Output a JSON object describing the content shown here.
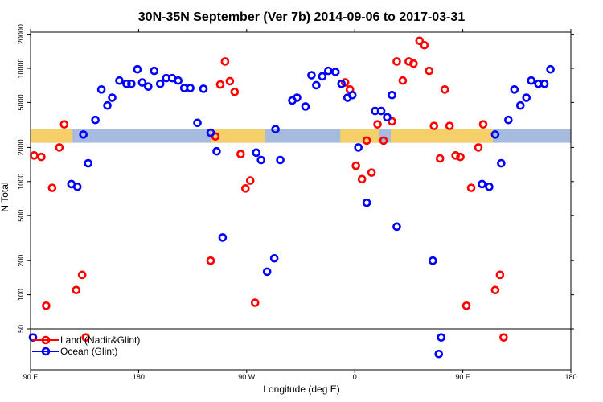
{
  "chart_data": {
    "type": "scatter",
    "title": "30N-35N September (Ver 7b)   2014-09-06 to 2017-03-31",
    "xlabel": "Longitude (deg E)",
    "ylabel": "N Total",
    "y_scale": "log",
    "x_ticks": [
      {
        "value": 0,
        "label": "90 E"
      },
      {
        "value": 90,
        "label": "180"
      },
      {
        "value": 180,
        "label": "90 W"
      },
      {
        "value": 270,
        "label": "0"
      },
      {
        "value": 360,
        "label": "90 E"
      },
      {
        "value": 450,
        "label": "180"
      }
    ],
    "y_ticks": [
      {
        "value": 50,
        "label": "50"
      },
      {
        "value": 100,
        "label": "100"
      },
      {
        "value": 200,
        "label": "200"
      },
      {
        "value": 500,
        "label": "500"
      },
      {
        "value": 1000,
        "label": "1000"
      },
      {
        "value": 2000,
        "label": "2000"
      },
      {
        "value": 5000,
        "label": "5000"
      },
      {
        "value": 10000,
        "label": "10000"
      },
      {
        "value": 20000,
        "label": "20000"
      }
    ],
    "legend": {
      "position": "bottom-left",
      "entries": [
        {
          "label": "Land (Nadir&Glint)",
          "color": "#ff0000"
        },
        {
          "label": "Ocean (Glint)",
          "color": "#0000ff"
        }
      ]
    },
    "surface_band": {
      "y_range": [
        2200,
        2900
      ],
      "land_color": "#f5d06a",
      "ocean_color": "#a6bbdd",
      "land_segments": [
        [
          -5,
          35
        ],
        [
          150,
          195
        ],
        [
          258,
          290
        ],
        [
          300,
          385
        ]
      ]
    },
    "series": [
      {
        "name": "Land (Nadir&Glint)",
        "color": "#ff0000",
        "points": [
          [
            3,
            1700
          ],
          [
            9,
            1650
          ],
          [
            13,
            80
          ],
          [
            18,
            880
          ],
          [
            24,
            2000
          ],
          [
            28,
            3200
          ],
          [
            38,
            110
          ],
          [
            43,
            150
          ],
          [
            46,
            42
          ],
          [
            150,
            200
          ],
          [
            154,
            2500
          ],
          [
            158,
            7200
          ],
          [
            162,
            11500
          ],
          [
            166,
            7700
          ],
          [
            170,
            6200
          ],
          [
            175,
            1750
          ],
          [
            179,
            870
          ],
          [
            183,
            1020
          ],
          [
            187,
            85
          ],
          [
            262,
            7500
          ],
          [
            266,
            6500
          ],
          [
            271,
            1380
          ],
          [
            276,
            1050
          ],
          [
            280,
            2300
          ],
          [
            284,
            1200
          ],
          [
            289,
            3200
          ],
          [
            294,
            2300
          ],
          [
            301,
            3400
          ],
          [
            305,
            11500
          ],
          [
            310,
            7800
          ],
          [
            315,
            11500
          ],
          [
            319,
            11000
          ],
          [
            324,
            17500
          ],
          [
            328,
            16000
          ],
          [
            332,
            9500
          ],
          [
            336,
            3100
          ],
          [
            341,
            1600
          ],
          [
            345,
            6500
          ],
          [
            349,
            3100
          ],
          [
            354,
            1700
          ],
          [
            358,
            1650
          ],
          [
            363,
            80
          ],
          [
            367,
            880
          ],
          [
            373,
            2000
          ],
          [
            377,
            3200
          ],
          [
            387,
            110
          ],
          [
            391,
            150
          ],
          [
            394,
            42
          ]
        ]
      },
      {
        "name": "Ocean (Glint)",
        "color": "#0000ff",
        "points": [
          [
            2,
            42
          ],
          [
            34,
            950
          ],
          [
            39,
            900
          ],
          [
            44,
            2600
          ],
          [
            48,
            1450
          ],
          [
            54,
            3500
          ],
          [
            59,
            6500
          ],
          [
            64,
            4700
          ],
          [
            68,
            5500
          ],
          [
            74,
            7800
          ],
          [
            80,
            7300
          ],
          [
            84,
            7300
          ],
          [
            89,
            9800
          ],
          [
            93,
            7500
          ],
          [
            98,
            6900
          ],
          [
            103,
            9500
          ],
          [
            108,
            7300
          ],
          [
            113,
            8200
          ],
          [
            118,
            8200
          ],
          [
            123,
            7800
          ],
          [
            128,
            6700
          ],
          [
            133,
            6700
          ],
          [
            139,
            3300
          ],
          [
            144,
            6600
          ],
          [
            150,
            2700
          ],
          [
            155,
            1850
          ],
          [
            160,
            320
          ],
          [
            188,
            1800
          ],
          [
            192,
            1550
          ],
          [
            197,
            160
          ],
          [
            203,
            210
          ],
          [
            204,
            2900
          ],
          [
            208,
            1550
          ],
          [
            218,
            5200
          ],
          [
            222,
            5500
          ],
          [
            229,
            4600
          ],
          [
            234,
            8700
          ],
          [
            238,
            7100
          ],
          [
            243,
            8500
          ],
          [
            248,
            9500
          ],
          [
            254,
            9300
          ],
          [
            259,
            7300
          ],
          [
            264,
            5500
          ],
          [
            268,
            5800
          ],
          [
            273,
            2000
          ],
          [
            280,
            650
          ],
          [
            287,
            4200
          ],
          [
            292,
            4200
          ],
          [
            297,
            3700
          ],
          [
            301,
            5800
          ],
          [
            305,
            400
          ],
          [
            335,
            200
          ],
          [
            340,
            30
          ],
          [
            342,
            42
          ],
          [
            376,
            950
          ],
          [
            382,
            900
          ],
          [
            387,
            2600
          ],
          [
            392,
            1450
          ],
          [
            398,
            3500
          ],
          [
            403,
            6500
          ],
          [
            408,
            4700
          ],
          [
            413,
            5500
          ],
          [
            417,
            7800
          ],
          [
            423,
            7300
          ],
          [
            428,
            7300
          ],
          [
            433,
            9800
          ]
        ]
      }
    ]
  }
}
